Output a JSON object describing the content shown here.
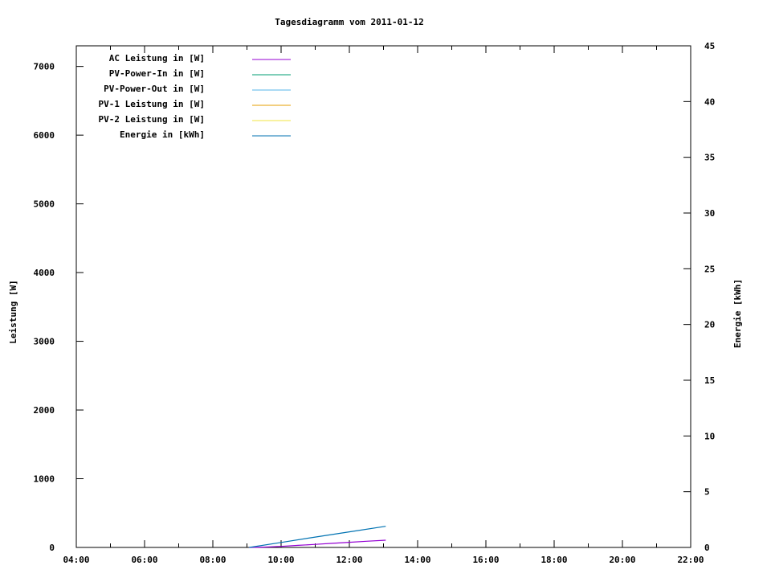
{
  "chart_data": {
    "type": "line",
    "title": "Tagesdiagramm vom 2011-01-12",
    "xlabel": "",
    "ylabel": "Leistung [W]",
    "y2label": "Energie [kWh]",
    "xlim": [
      "04:00",
      "22:00"
    ],
    "xticks": [
      "04:00",
      "06:00",
      "08:00",
      "10:00",
      "12:00",
      "14:00",
      "16:00",
      "18:00",
      "20:00",
      "22:00"
    ],
    "ylim": [
      0,
      7300
    ],
    "yticks": [
      0,
      1000,
      2000,
      3000,
      4000,
      5000,
      6000,
      7000
    ],
    "y2lim": [
      0,
      45
    ],
    "y2ticks": [
      0,
      5,
      10,
      15,
      20,
      25,
      30,
      35,
      40,
      45
    ],
    "grid": false,
    "legend_position": "top-left",
    "series": [
      {
        "name": "AC Leistung in [W]",
        "axis": "y",
        "color": "#9400d3",
        "x": [
          "09:04",
          "09:30",
          "10:00",
          "10:30",
          "11:00",
          "11:30",
          "12:00",
          "12:30",
          "13:04"
        ],
        "y": [
          0,
          5,
          15,
          30,
          45,
          60,
          75,
          90,
          105
        ]
      },
      {
        "name": "PV-Power-In in [W]",
        "axis": "y",
        "color": "#009e73",
        "x": [],
        "y": []
      },
      {
        "name": "PV-Power-Out in [W]",
        "axis": "y",
        "color": "#56b4e9",
        "x": [],
        "y": []
      },
      {
        "name": "PV-1 Leistung in [W]",
        "axis": "y",
        "color": "#e69f00",
        "x": [],
        "y": []
      },
      {
        "name": "PV-2 Leistung in [W]",
        "axis": "y",
        "color": "#f0e442",
        "x": [],
        "y": []
      },
      {
        "name": "Energie in [kWh]",
        "axis": "y2",
        "color": "#0072b2",
        "x": [
          "09:04",
          "10:00",
          "11:00",
          "12:00",
          "13:04"
        ],
        "y": [
          0,
          0.45,
          0.93,
          1.4,
          1.9
        ]
      }
    ]
  }
}
